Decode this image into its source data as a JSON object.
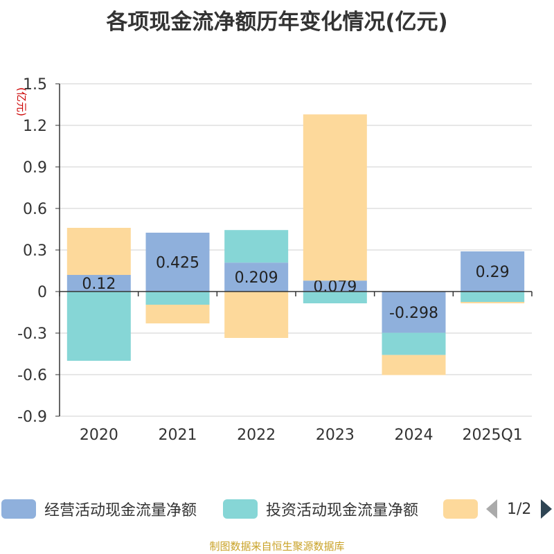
{
  "chart_data": {
    "type": "bar",
    "stacked": true,
    "title": "各项现金流净额历年变化情况(亿元)",
    "ylabel": "(亿元)",
    "xlabel": "",
    "ylim": [
      -0.9,
      1.5
    ],
    "yticks": [
      1.5,
      1.2,
      0.9,
      0.6,
      0.3,
      0,
      -0.3,
      -0.6,
      -0.9
    ],
    "ytick_labels": [
      "1.5",
      "1.2",
      "0.9",
      "0.6",
      "0.3",
      "0",
      "-0.3",
      "-0.6",
      "-0.9"
    ],
    "categories": [
      "2020",
      "2021",
      "2022",
      "2023",
      "2024",
      "2025Q1"
    ],
    "series": [
      {
        "name": "经营活动现金流量净额",
        "color": "#8fb0dc",
        "labeled": true,
        "values": [
          0.12,
          0.425,
          0.209,
          0.079,
          -0.298,
          0.29
        ],
        "labels": [
          "0.12",
          "0.425",
          "0.209",
          "0.079",
          "-0.298",
          "0.29"
        ]
      },
      {
        "name": "投资活动现金流量净额",
        "color": "#86d6d6",
        "labeled": false,
        "values": [
          -0.5,
          -0.095,
          0.235,
          -0.085,
          -0.16,
          -0.075
        ]
      },
      {
        "name": "",
        "color": "#fdd99b",
        "labeled": false,
        "values": [
          0.34,
          -0.135,
          -0.335,
          1.2,
          -0.145,
          -0.01
        ]
      }
    ],
    "legend_position": "bottom",
    "grid": true
  },
  "legend": {
    "items": [
      {
        "label": "经营活动现金流量净额",
        "color": "#8fb0dc"
      },
      {
        "label": "投资活动现金流量净额",
        "color": "#86d6d6"
      },
      {
        "label": "",
        "color": "#fdd99b"
      }
    ],
    "page_text": "1/2"
  },
  "source": "制图数据来自恒生聚源数据库"
}
